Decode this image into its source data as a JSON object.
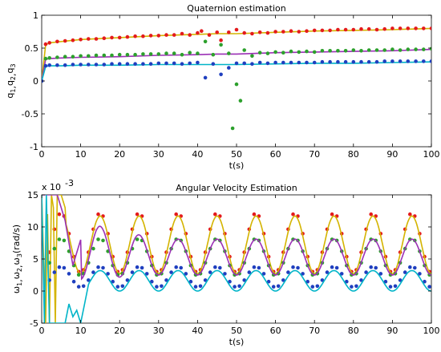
{
  "chart_data": [
    {
      "type": "line",
      "title": "Quaternion estimation",
      "xlabel": "t(s)",
      "ylabel": "q1,q2,q3",
      "ylabel_parts": {
        "base": "q",
        "subs": [
          "1",
          "2",
          "3"
        ]
      },
      "xlim": [
        0,
        100
      ],
      "ylim": [
        -1,
        1
      ],
      "xticks": [
        "0",
        "10",
        "20",
        "30",
        "40",
        "50",
        "60",
        "70",
        "80",
        "90",
        "100"
      ],
      "yticks": [
        "-1",
        "-0.5",
        "0",
        "0.5",
        "1"
      ],
      "grid": false,
      "legend": "none",
      "series": [
        {
          "color": "#d4b400",
          "style": "line",
          "x": [
            0,
            1,
            2,
            5,
            10,
            20,
            30,
            40,
            45,
            50,
            60,
            70,
            80,
            90,
            100
          ],
          "y": [
            0,
            0.55,
            0.58,
            0.6,
            0.63,
            0.66,
            0.69,
            0.71,
            0.72,
            0.72,
            0.74,
            0.76,
            0.77,
            0.78,
            0.8
          ]
        },
        {
          "color": "#e41a1c",
          "style": "markers",
          "x": [
            0,
            1,
            2,
            4,
            6,
            8,
            10,
            12,
            14,
            16,
            18,
            20,
            22,
            24,
            26,
            28,
            30,
            32,
            34,
            36,
            38,
            40,
            41,
            43,
            45,
            46,
            48,
            50,
            52,
            54,
            56,
            58,
            60,
            62,
            64,
            66,
            68,
            70,
            72,
            74,
            76,
            78,
            80,
            82,
            84,
            86,
            88,
            90,
            92,
            94,
            96,
            98,
            100
          ],
          "y": [
            0,
            0.56,
            0.58,
            0.6,
            0.61,
            0.62,
            0.63,
            0.64,
            0.64,
            0.65,
            0.66,
            0.66,
            0.67,
            0.68,
            0.68,
            0.69,
            0.69,
            0.7,
            0.7,
            0.72,
            0.7,
            0.73,
            0.76,
            0.7,
            0.74,
            0.62,
            0.74,
            0.78,
            0.73,
            0.72,
            0.74,
            0.73,
            0.75,
            0.75,
            0.76,
            0.75,
            0.76,
            0.77,
            0.77,
            0.77,
            0.78,
            0.78,
            0.78,
            0.79,
            0.79,
            0.78,
            0.79,
            0.8,
            0.8,
            0.8,
            0.8,
            0.8,
            0.8
          ]
        },
        {
          "color": "#9b30b5",
          "style": "line",
          "x": [
            0,
            1,
            2,
            5,
            10,
            20,
            30,
            40,
            45,
            50,
            60,
            70,
            80,
            90,
            100
          ],
          "y": [
            0,
            0.33,
            0.34,
            0.35,
            0.36,
            0.37,
            0.39,
            0.4,
            0.41,
            0.41,
            0.43,
            0.44,
            0.45,
            0.46,
            0.48
          ]
        },
        {
          "color": "#2ca02c",
          "style": "markers",
          "x": [
            0,
            1,
            2,
            4,
            6,
            8,
            10,
            12,
            14,
            16,
            18,
            20,
            22,
            24,
            26,
            28,
            30,
            32,
            34,
            36,
            38,
            40,
            42,
            44,
            46,
            48,
            49,
            50,
            51,
            52,
            54,
            56,
            58,
            60,
            62,
            64,
            66,
            68,
            70,
            72,
            74,
            76,
            78,
            80,
            82,
            84,
            86,
            88,
            90,
            92,
            94,
            96,
            98,
            100
          ],
          "y": [
            0,
            0.34,
            0.35,
            0.36,
            0.37,
            0.37,
            0.38,
            0.38,
            0.39,
            0.39,
            0.39,
            0.4,
            0.4,
            0.4,
            0.41,
            0.41,
            0.41,
            0.42,
            0.42,
            0.4,
            0.43,
            0.42,
            0.6,
            0.4,
            0.55,
            0.42,
            -0.72,
            -0.05,
            -0.3,
            0.47,
            0.38,
            0.43,
            0.42,
            0.44,
            0.43,
            0.45,
            0.44,
            0.45,
            0.44,
            0.46,
            0.46,
            0.46,
            0.46,
            0.47,
            0.46,
            0.47,
            0.47,
            0.47,
            0.48,
            0.47,
            0.48,
            0.48,
            0.48,
            0.49
          ]
        },
        {
          "color": "#00b4c8",
          "style": "line",
          "x": [
            0,
            1,
            2,
            5,
            10,
            20,
            30,
            40,
            45,
            50,
            60,
            70,
            80,
            90,
            100
          ],
          "y": [
            0,
            0.22,
            0.23,
            0.23,
            0.24,
            0.24,
            0.25,
            0.25,
            0.25,
            0.25,
            0.26,
            0.27,
            0.27,
            0.28,
            0.29
          ]
        },
        {
          "color": "#1f3fbf",
          "style": "markers",
          "x": [
            0,
            1,
            2,
            4,
            6,
            8,
            10,
            12,
            14,
            16,
            18,
            20,
            22,
            24,
            26,
            28,
            30,
            32,
            34,
            36,
            38,
            40,
            42,
            44,
            46,
            48,
            50,
            52,
            54,
            56,
            58,
            60,
            62,
            64,
            66,
            68,
            70,
            72,
            74,
            76,
            78,
            80,
            82,
            84,
            86,
            88,
            90,
            92,
            94,
            96,
            98,
            100
          ],
          "y": [
            0,
            0.23,
            0.24,
            0.24,
            0.24,
            0.25,
            0.25,
            0.25,
            0.25,
            0.25,
            0.26,
            0.26,
            0.26,
            0.26,
            0.26,
            0.26,
            0.27,
            0.27,
            0.27,
            0.26,
            0.27,
            0.28,
            0.05,
            0.26,
            0.1,
            0.2,
            0.27,
            0.27,
            0.26,
            0.28,
            0.27,
            0.28,
            0.28,
            0.28,
            0.28,
            0.28,
            0.28,
            0.29,
            0.29,
            0.29,
            0.29,
            0.29,
            0.29,
            0.29,
            0.29,
            0.3,
            0.3,
            0.3,
            0.3,
            0.3,
            0.3,
            0.3
          ]
        }
      ]
    },
    {
      "type": "line",
      "title": "Angular Velocity Estimation",
      "xlabel": "t(s)",
      "ylabel": "ω1,ω2,ω3(rad/s)",
      "ylabel_parts": {
        "base": "ω",
        "subs": [
          "1",
          "2",
          "3"
        ],
        "unit": "(rad/s)"
      },
      "exponent_label": "x 10",
      "exponent_power": "-3",
      "xlim": [
        0,
        100
      ],
      "ylim": [
        -5,
        15
      ],
      "xticks": [
        "0",
        "10",
        "20",
        "30",
        "40",
        "50",
        "60",
        "70",
        "80",
        "90",
        "100"
      ],
      "yticks": [
        "-5",
        "0",
        "5",
        "10",
        "15"
      ],
      "grid": false,
      "legend": "none",
      "oscillation": {
        "period": 10,
        "phase_peak_at": 5
      },
      "series": [
        {
          "color": "#e41a1c",
          "style": "markers",
          "kind": "sine",
          "offset": 7.5,
          "amplitude": 4.7,
          "start": 2
        },
        {
          "color": "#d4b400",
          "style": "line",
          "kind": "sine",
          "offset": 7.2,
          "amplitude": 4.5,
          "start": 2,
          "transient": {
            "x": [
              0,
              0.5,
              1,
              1.5,
              2,
              2.5,
              3,
              3.5,
              4,
              5,
              6
            ],
            "y": [
              15,
              5,
              -5,
              12,
              -5,
              15,
              13,
              -5,
              15,
              15,
              13
            ]
          }
        },
        {
          "color": "#2ca02c",
          "style": "markers",
          "kind": "sine",
          "offset": 5.3,
          "amplitude": 2.9,
          "start": 2
        },
        {
          "color": "#9b30b5",
          "style": "line",
          "kind": "sine",
          "offset": 5.3,
          "amplitude": 2.8,
          "start": 2,
          "transient": {
            "x": [
              0,
              2,
              4,
              6,
              8,
              10
            ],
            "y": [
              15,
              15,
              15,
              11,
              4,
              8
            ]
          },
          "damping": {
            "until": 30,
            "extra_amp": 2.5,
            "extra_offset": 1.5
          }
        },
        {
          "color": "#1f3fbf",
          "style": "markers",
          "kind": "sine",
          "offset": 2.2,
          "amplitude": 1.6,
          "start": 2
        },
        {
          "color": "#00b4c8",
          "style": "line",
          "kind": "sine",
          "offset": 1.6,
          "amplitude": 1.6,
          "start": 2,
          "transient": {
            "x": [
              0,
              0.7,
              1.2,
              2,
              3,
              4,
              5,
              6,
              7,
              8,
              9,
              10,
              11,
              12
            ],
            "y": [
              15,
              -5,
              15,
              -5,
              -5,
              -5,
              -5,
              -5,
              -2,
              -4,
              -3,
              -5,
              -2,
              1
            ]
          }
        }
      ]
    }
  ]
}
